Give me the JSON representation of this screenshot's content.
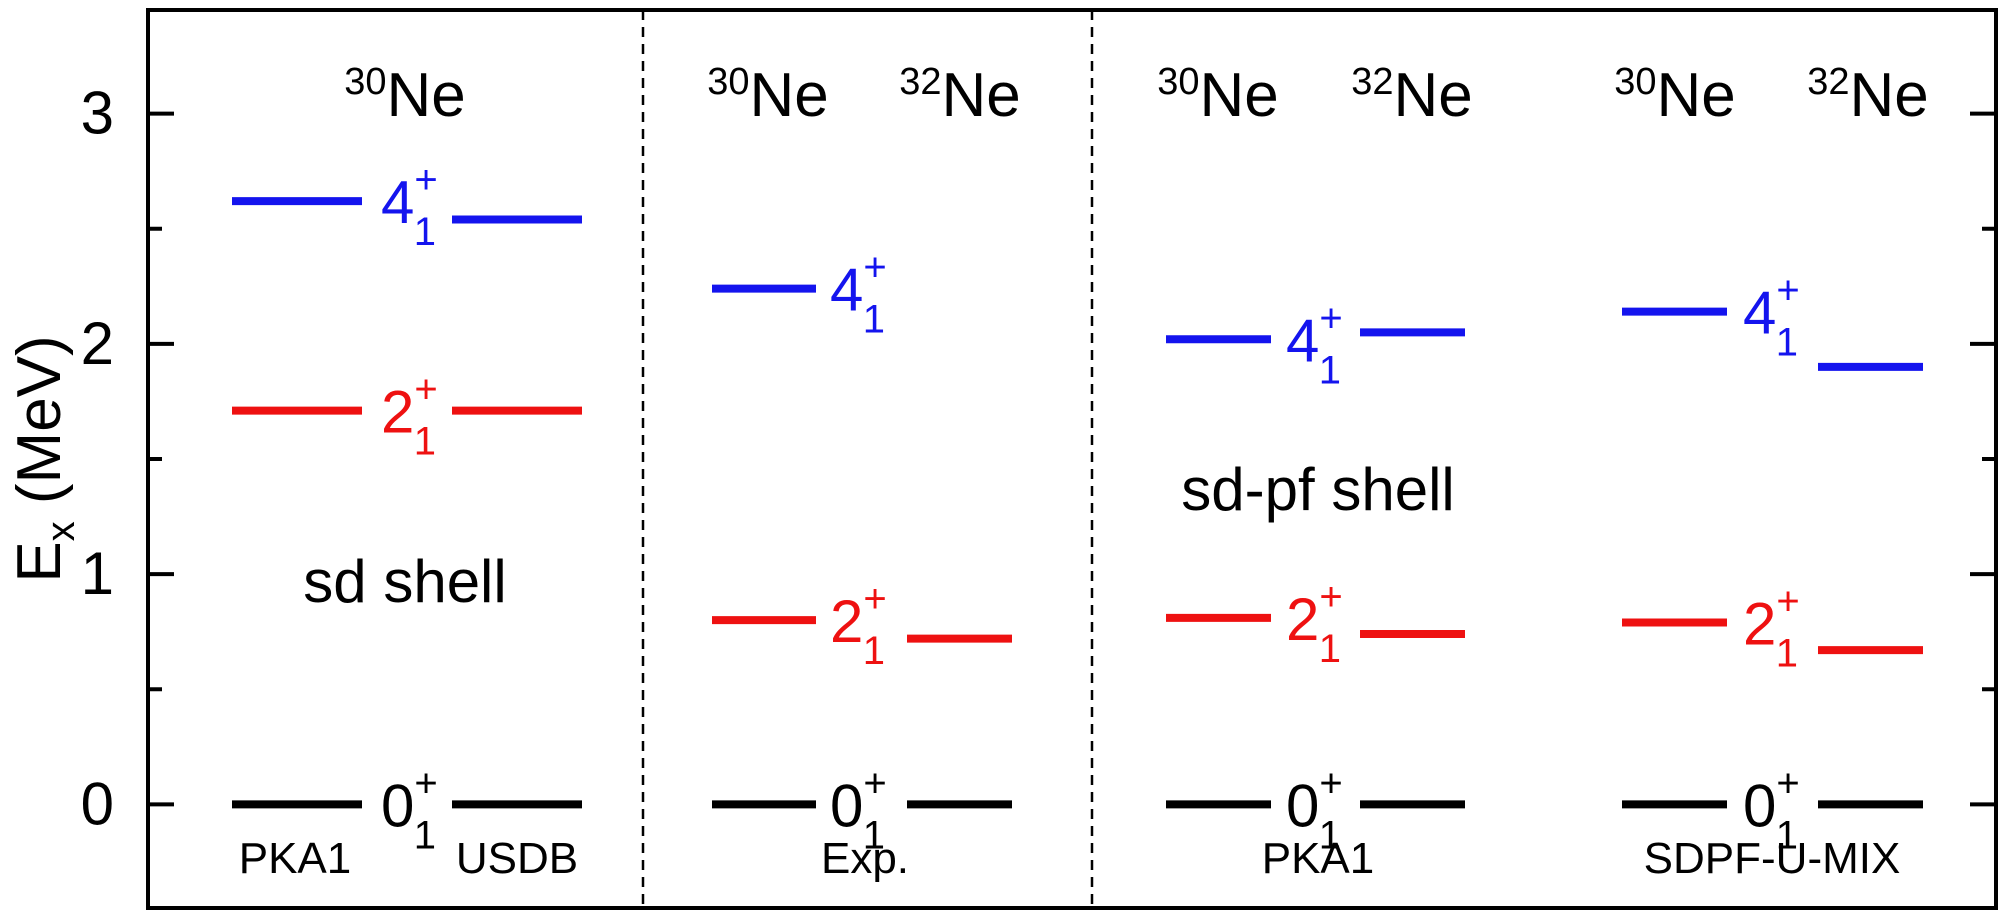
{
  "chart_data": {
    "type": "level-scheme",
    "ylabel_main": "E",
    "ylabel_sub": "x",
    "ylabel_unit": " (MeV)",
    "ylim": [
      -0.45,
      3.45
    ],
    "yticks": [
      0,
      1,
      2,
      3
    ],
    "ytick_labels": [
      "0",
      "1",
      "2",
      "3"
    ],
    "minor_ticks": [
      0.5,
      1.5,
      2.5
    ],
    "colors": {
      "black": "#000000",
      "red": "#ee1111",
      "blue": "#1414ee",
      "dashed": "#000000"
    },
    "groups": [
      {
        "bottom_label": "",
        "region_label": "sd shell",
        "columns": [
          {
            "label": "PKA1",
            "nucleus_mass": "",
            "nucleus_symbol": "",
            "levels": [
              {
                "state": "0",
                "energy": 0.0
              },
              {
                "state": "2",
                "energy": 1.71
              },
              {
                "state": "4",
                "energy": 2.62
              }
            ]
          },
          {
            "label": "USDB",
            "nucleus_mass": "",
            "nucleus_symbol": "",
            "levels": [
              {
                "state": "0",
                "energy": 0.0
              },
              {
                "state": "2",
                "energy": 1.71
              },
              {
                "state": "4",
                "energy": 2.54
              }
            ]
          }
        ],
        "header": {
          "mass": "30",
          "symbol": "Ne"
        }
      },
      {
        "bottom_label": "Exp.",
        "region_label": "",
        "columns": [
          {
            "label": "",
            "nucleus_mass": "30",
            "nucleus_symbol": "Ne",
            "levels": [
              {
                "state": "0",
                "energy": 0.0
              },
              {
                "state": "2",
                "energy": 0.8
              },
              {
                "state": "4",
                "energy": 2.24
              }
            ]
          },
          {
            "label": "",
            "nucleus_mass": "32",
            "nucleus_symbol": "Ne",
            "levels": [
              {
                "state": "0",
                "energy": 0.0
              },
              {
                "state": "2",
                "energy": 0.72
              }
            ]
          }
        ]
      },
      {
        "bottom_label": "PKA1",
        "region_label": "sd-pf shell",
        "columns": [
          {
            "label": "",
            "nucleus_mass": "30",
            "nucleus_symbol": "Ne",
            "levels": [
              {
                "state": "0",
                "energy": 0.0
              },
              {
                "state": "2",
                "energy": 0.81
              },
              {
                "state": "4",
                "energy": 2.02
              }
            ]
          },
          {
            "label": "",
            "nucleus_mass": "32",
            "nucleus_symbol": "Ne",
            "levels": [
              {
                "state": "0",
                "energy": 0.0
              },
              {
                "state": "2",
                "energy": 0.74
              },
              {
                "state": "4",
                "energy": 2.05
              }
            ]
          }
        ]
      },
      {
        "bottom_label": "SDPF-U-MIX",
        "region_label": "",
        "columns": [
          {
            "label": "",
            "nucleus_mass": "30",
            "nucleus_symbol": "Ne",
            "levels": [
              {
                "state": "0",
                "energy": 0.0
              },
              {
                "state": "2",
                "energy": 0.79
              },
              {
                "state": "4",
                "energy": 2.14
              }
            ]
          },
          {
            "label": "",
            "nucleus_mass": "32",
            "nucleus_symbol": "Ne",
            "levels": [
              {
                "state": "0",
                "energy": 0.0
              },
              {
                "state": "2",
                "energy": 0.67
              },
              {
                "state": "4",
                "energy": 1.9
              }
            ]
          }
        ]
      }
    ],
    "state_labels": [
      {
        "group": 0,
        "spin": "0",
        "sup": "+",
        "sub": "1",
        "energy": 0.0
      },
      {
        "group": 0,
        "spin": "2",
        "sup": "+",
        "sub": "1",
        "energy": 1.71
      },
      {
        "group": 0,
        "spin": "4",
        "sup": "+",
        "sub": "1",
        "energy": 2.62
      },
      {
        "group": 1,
        "spin": "0",
        "sup": "+",
        "sub": "1",
        "energy": 0.0
      },
      {
        "group": 1,
        "spin": "2",
        "sup": "+",
        "sub": "1",
        "energy": 0.8
      },
      {
        "group": 1,
        "spin": "4",
        "sup": "+",
        "sub": "1",
        "energy": 2.24
      },
      {
        "group": 2,
        "spin": "0",
        "sup": "+",
        "sub": "1",
        "energy": 0.0
      },
      {
        "group": 2,
        "spin": "2",
        "sup": "+",
        "sub": "1",
        "energy": 0.81
      },
      {
        "group": 2,
        "spin": "4",
        "sup": "+",
        "sub": "1",
        "energy": 2.02
      },
      {
        "group": 3,
        "spin": "0",
        "sup": "+",
        "sub": "1",
        "energy": 0.0
      },
      {
        "group": 3,
        "spin": "2",
        "sup": "+",
        "sub": "1",
        "energy": 0.79
      },
      {
        "group": 3,
        "spin": "4",
        "sup": "+",
        "sub": "1",
        "energy": 2.14
      }
    ]
  }
}
